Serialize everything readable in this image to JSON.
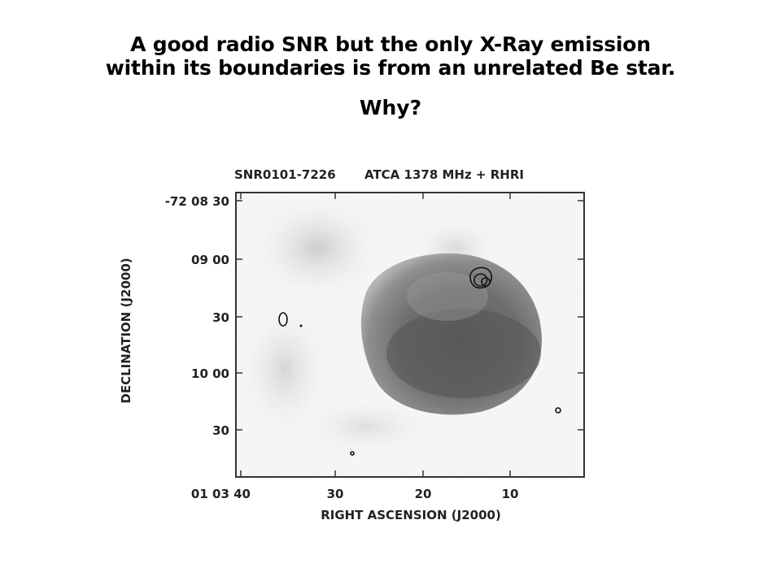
{
  "slide": {
    "title_line1": "A good radio SNR but the only X-Ray emission",
    "title_line2": "within its boundaries is from an unrelated Be star.",
    "question": "Why?"
  },
  "figure": {
    "header_name": "SNR0101-7226",
    "header_instrument": "ATCA  1378  MHz  +  RHRI",
    "y_axis_label": "DECLINATION  (J2000)",
    "x_axis_label": "RIGHT  ASCENSION  (J2000)",
    "y_ticks": [
      "-72  08  30",
      "09  00",
      "30",
      "10  00",
      "30"
    ],
    "x_ticks": [
      "01  03  40",
      "30",
      "20",
      "10"
    ]
  }
}
